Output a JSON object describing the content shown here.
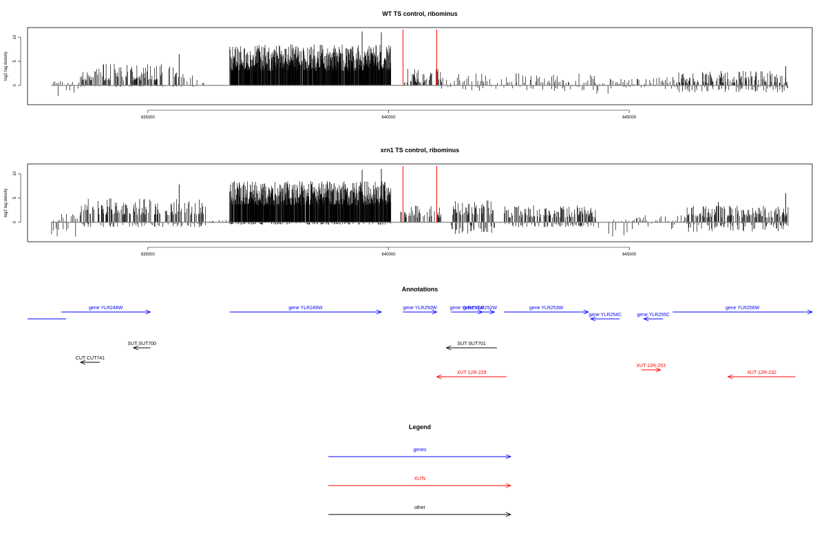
{
  "colors": {
    "gene": "#0000ff",
    "xut": "#ff0000",
    "other": "#000000",
    "signal": "#000000",
    "marker": "#ff0000",
    "baseline": "#808080"
  },
  "chart_data": [
    {
      "type": "bar",
      "title": "WT TS control, ribominus",
      "xlabel": "",
      "ylabel": "log2 tag density",
      "xlim": [
        632500,
        648800
      ],
      "ylim": [
        -4,
        12
      ],
      "xticks": [
        "635000",
        "640000",
        "645000"
      ],
      "xtick_values": [
        635000,
        640000,
        645000
      ],
      "yticks": [
        "0",
        "5",
        "10"
      ],
      "ytick_values": [
        0,
        5,
        10
      ],
      "red_markers_x": [
        640300,
        641000
      ],
      "segments": [
        {
          "range": [
            633000,
            633600
          ],
          "pos": [
            0,
            1
          ],
          "neg": [
            0.5,
            2.5
          ]
        },
        {
          "range": [
            633600,
            635600
          ],
          "pos": [
            1,
            4.5
          ],
          "neg": [
            0,
            0.3
          ]
        },
        {
          "range": [
            635600,
            636300
          ],
          "pos": [
            0.5,
            2.5
          ],
          "neg": [
            0,
            0.3
          ]
        },
        {
          "range": [
            636700,
            640050
          ],
          "pos": [
            3,
            8.5
          ],
          "neg": [
            0,
            0
          ]
        },
        {
          "range": [
            640300,
            641100
          ],
          "pos": [
            0.5,
            3.5
          ],
          "neg": [
            0,
            0
          ]
        },
        {
          "range": [
            641100,
            644300
          ],
          "pos": [
            0.5,
            2.5
          ],
          "neg": [
            0,
            1.2
          ]
        },
        {
          "range": [
            644300,
            644600
          ],
          "pos": [
            0,
            0.5
          ],
          "neg": [
            0.5,
            1.8
          ]
        },
        {
          "range": [
            644600,
            646000
          ],
          "pos": [
            0.3,
            1.8
          ],
          "neg": [
            0,
            0.8
          ]
        },
        {
          "range": [
            646000,
            648300
          ],
          "pos": [
            0.5,
            3
          ],
          "neg": [
            0,
            1.5
          ]
        }
      ],
      "peaks": [
        [
          635650,
          6.5
        ],
        [
          639450,
          11.2
        ],
        [
          639850,
          11
        ],
        [
          642650,
          2.5
        ],
        [
          648250,
          4
        ]
      ]
    },
    {
      "type": "bar",
      "title": "xrn1 TS control, ribominus",
      "xlabel": "",
      "ylabel": "log2 tag density",
      "xlim": [
        632500,
        648800
      ],
      "ylim": [
        -4,
        12
      ],
      "xticks": [
        "635000",
        "640000",
        "645000"
      ],
      "xtick_values": [
        635000,
        640000,
        645000
      ],
      "yticks": [
        "0",
        "5",
        "10"
      ],
      "ytick_values": [
        0,
        5,
        10
      ],
      "red_markers_x": [
        640300,
        641000
      ],
      "segments": [
        {
          "range": [
            633000,
            633600
          ],
          "pos": [
            0,
            2
          ],
          "neg": [
            1,
            3
          ]
        },
        {
          "range": [
            633600,
            636200
          ],
          "pos": [
            1.5,
            5
          ],
          "neg": [
            0,
            1
          ]
        },
        {
          "range": [
            636200,
            636700
          ],
          "pos": [
            0,
            0.5
          ],
          "neg": [
            0,
            0.2
          ]
        },
        {
          "range": [
            636700,
            640050
          ],
          "pos": [
            3.5,
            8.5
          ],
          "neg": [
            0,
            0.5
          ]
        },
        {
          "range": [
            640250,
            641100
          ],
          "pos": [
            1,
            3.5
          ],
          "neg": [
            0,
            0
          ]
        },
        {
          "range": [
            641300,
            642200
          ],
          "pos": [
            1.5,
            4.5
          ],
          "neg": [
            0.5,
            2.5
          ]
        },
        {
          "range": [
            642400,
            644300
          ],
          "pos": [
            1,
            3.5
          ],
          "neg": [
            0,
            1
          ]
        },
        {
          "range": [
            644300,
            645100
          ],
          "pos": [
            0,
            0.8
          ],
          "neg": [
            1,
            3
          ]
        },
        {
          "range": [
            645100,
            646200
          ],
          "pos": [
            0.3,
            1.5
          ],
          "neg": [
            0,
            1.5
          ]
        },
        {
          "range": [
            646200,
            648300
          ],
          "pos": [
            1,
            3.5
          ],
          "neg": [
            0,
            2
          ]
        }
      ],
      "peaks": [
        [
          635650,
          7.8
        ],
        [
          639450,
          10.8
        ],
        [
          639850,
          11
        ],
        [
          646850,
          4.2
        ],
        [
          648250,
          6
        ]
      ]
    }
  ],
  "annotations": {
    "title": "Annotations",
    "xlim": [
      632500,
      648800
    ],
    "features": [
      {
        "label": "",
        "kind": "gene",
        "start": 632500,
        "end": 633300,
        "dir": "none",
        "row": 1
      },
      {
        "label": "gene YLR248W",
        "kind": "gene",
        "start": 633200,
        "end": 635050,
        "dir": "right",
        "row": 0
      },
      {
        "label": "gene YLR249W",
        "kind": "gene",
        "start": 636700,
        "end": 639850,
        "dir": "right",
        "row": 0
      },
      {
        "label": "gene YLR250W",
        "kind": "gene",
        "start": 640300,
        "end": 641000,
        "dir": "right",
        "row": 0
      },
      {
        "label": "gene YLR251W",
        "kind": "gene",
        "start": 641300,
        "end": 641950,
        "dir": "right",
        "row": 0
      },
      {
        "label": "gene YLR252W",
        "kind": "gene",
        "start": 641600,
        "end": 642200,
        "dir": "right",
        "row": 0
      },
      {
        "label": "gene YLR253W",
        "kind": "gene",
        "start": 642400,
        "end": 644150,
        "dir": "right",
        "row": 0
      },
      {
        "label": "gene YLR254C",
        "kind": "gene",
        "start": 644200,
        "end": 644800,
        "dir": "left",
        "row": 1
      },
      {
        "label": "gene YLR255C",
        "kind": "gene",
        "start": 645300,
        "end": 645700,
        "dir": "left",
        "row": 1
      },
      {
        "label": "gene YLR256W",
        "kind": "gene",
        "start": 645900,
        "end": 648800,
        "dir": "right",
        "row": 0
      },
      {
        "label": "SUT SUT700",
        "kind": "other",
        "start": 634700,
        "end": 635050,
        "dir": "left",
        "row": 2
      },
      {
        "label": "SUT SUT701",
        "kind": "other",
        "start": 641200,
        "end": 642250,
        "dir": "left",
        "row": 2
      },
      {
        "label": "CUT CUT741",
        "kind": "other",
        "start": 633600,
        "end": 634000,
        "dir": "left",
        "row": 3
      },
      {
        "label": "XUT 12R-229",
        "kind": "xut",
        "start": 641000,
        "end": 642450,
        "dir": "left",
        "row": 4
      },
      {
        "label": "XUT 12R-253",
        "kind": "xut",
        "start": 645250,
        "end": 645650,
        "dir": "right",
        "row": 5
      },
      {
        "label": "XUT 12R-232",
        "kind": "xut",
        "start": 647050,
        "end": 648450,
        "dir": "left",
        "row": 4
      }
    ]
  },
  "legend": {
    "title": "Legend",
    "items": [
      {
        "label": "genes",
        "kind": "gene"
      },
      {
        "label": "XUTs",
        "kind": "xut"
      },
      {
        "label": "other",
        "kind": "other"
      }
    ]
  }
}
